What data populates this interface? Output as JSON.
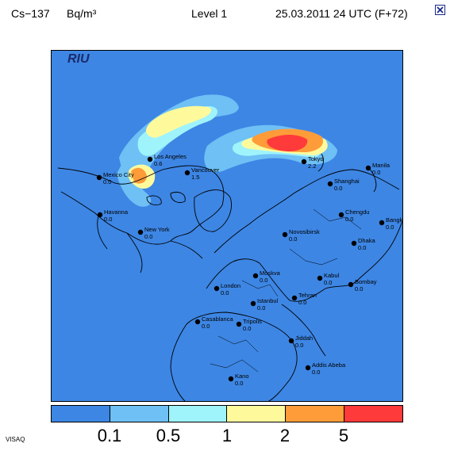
{
  "header": {
    "nuclide": "Cs−137",
    "unit": "Bq/m³",
    "level": "Level  1",
    "datetime": "25.03.2011 24 UTC (F+72)"
  },
  "close_icon": "close-x-icon",
  "logo": "RIU",
  "colorbar": {
    "colors": [
      "#3d86e4",
      "#6ec0f5",
      "#9ff3fb",
      "#fefa9c",
      "#ff9c3a",
      "#ff3a3a"
    ],
    "ticks": [
      "0.1",
      "0.5",
      "1",
      "2",
      "5"
    ]
  },
  "source": "VISAQ",
  "cities": [
    {
      "name": "Los Angeles",
      "value": "0.6"
    },
    {
      "name": "Mexico City",
      "value": "0.0"
    },
    {
      "name": "Vancouver",
      "value": "1.5"
    },
    {
      "name": "Havanna",
      "value": "0.0"
    },
    {
      "name": "New York",
      "value": "0.0"
    },
    {
      "name": "Tokyo",
      "value": "2.2"
    },
    {
      "name": "Shanghai",
      "value": "0.0"
    },
    {
      "name": "Manila",
      "value": "0.0"
    },
    {
      "name": "Chengdu",
      "value": "0.0"
    },
    {
      "name": "Bangkok",
      "value": "0.0"
    },
    {
      "name": "Novosibirsk",
      "value": "0.0"
    },
    {
      "name": "Dhaka",
      "value": "0.0"
    },
    {
      "name": "Moskva",
      "value": "0.0"
    },
    {
      "name": "Kabul",
      "value": "0.0"
    },
    {
      "name": "Bombay",
      "value": "0.0"
    },
    {
      "name": "Tehran",
      "value": "0.0"
    },
    {
      "name": "London",
      "value": "0.0"
    },
    {
      "name": "Istanbul",
      "value": "0.0"
    },
    {
      "name": "Casablanca",
      "value": "0.0"
    },
    {
      "name": "Tripolis",
      "value": "0.0"
    },
    {
      "name": "Jiddah",
      "value": "0.0"
    },
    {
      "name": "Addis Abeba",
      "value": "0.0"
    },
    {
      "name": "Kano",
      "value": "0.0"
    }
  ]
}
